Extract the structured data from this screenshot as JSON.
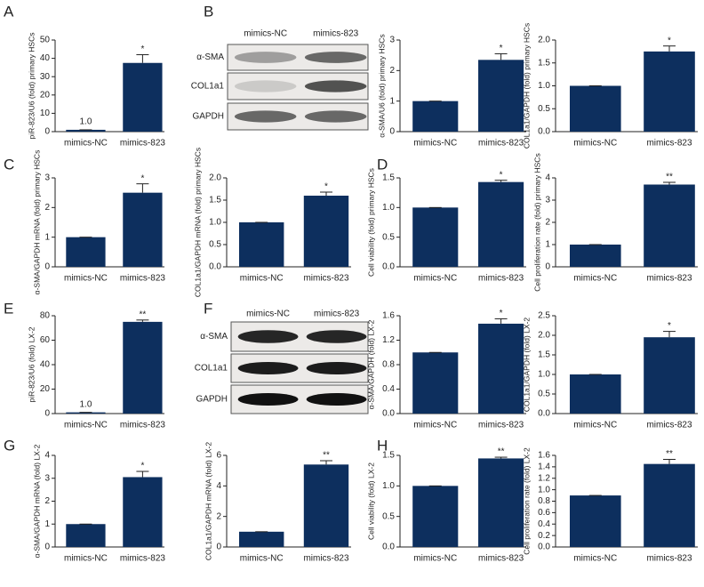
{
  "panels": [
    "A",
    "B",
    "C",
    "D",
    "E",
    "F",
    "G",
    "H"
  ],
  "blots": [
    {
      "columns": [
        "mimics-NC",
        "mimics-823"
      ],
      "rows": [
        "α-SMA",
        "COL1a1",
        "GAPDH"
      ]
    },
    {
      "columns": [
        "mimics-NC",
        "mimics-823"
      ],
      "rows": [
        "α-SMA",
        "COL1a1",
        "GAPDH"
      ]
    }
  ],
  "chart_data": [
    {
      "type": "bar",
      "ylabel": "piR-823/U6 (fold) primary HSCs",
      "categories": [
        "mimics-NC",
        "mimics-823"
      ],
      "values": [
        1,
        37.5
      ],
      "errors": [
        0,
        4.5
      ],
      "value_labels": [
        "1.0",
        null
      ],
      "star": "*",
      "color": "#0d2f5e",
      "ylim": [
        0,
        50
      ],
      "yticks": [
        0,
        10,
        20,
        30,
        40,
        50
      ]
    },
    {
      "type": "bar",
      "ylabel": "α-SMA/U6 (fold) primary HSCs",
      "categories": [
        "mimics-NC",
        "mimics-823"
      ],
      "values": [
        1,
        2.35
      ],
      "errors": [
        0,
        0.2
      ],
      "star": "*",
      "color": "#0d2f5e",
      "ylim": [
        0,
        3
      ],
      "yticks": [
        0,
        1,
        2,
        3
      ]
    },
    {
      "type": "bar",
      "ylabel": "COL1a1/GAPDH (fold) primary HSCs",
      "categories": [
        "mimics-NC",
        "mimics-823"
      ],
      "values": [
        1,
        1.75
      ],
      "errors": [
        0,
        0.12
      ],
      "star": "*",
      "color": "#0d2f5e",
      "ylim": [
        0,
        2
      ],
      "yticks": [
        {
          "value": 0,
          "label": "0.0"
        },
        0.5,
        {
          "value": 1,
          "label": "1.0"
        },
        1.5,
        {
          "value": 2,
          "label": "2.0"
        }
      ]
    },
    {
      "type": "bar",
      "ylabel": "α-SMA/GAPDH mRNA (fold) primary HSCs",
      "categories": [
        "mimics-NC",
        "mimics-823"
      ],
      "values": [
        1,
        2.5
      ],
      "errors": [
        0,
        0.3
      ],
      "star": "*",
      "color": "#0d2f5e",
      "ylim": [
        0,
        3
      ],
      "yticks": [
        0,
        1,
        2,
        3
      ]
    },
    {
      "type": "bar",
      "ylabel": "COL1a1/GAPDH mRNA (fold) primary HSCs",
      "categories": [
        "mimics-NC",
        "mimics-823"
      ],
      "values": [
        1,
        1.6
      ],
      "errors": [
        0,
        0.08
      ],
      "star": "*",
      "color": "#0d2f5e",
      "ylim": [
        0,
        2
      ],
      "yticks": [
        {
          "value": 0,
          "label": "0.0"
        },
        0.5,
        {
          "value": 1,
          "label": "1.0"
        },
        1.5,
        {
          "value": 2,
          "label": "2.0"
        }
      ]
    },
    {
      "type": "bar",
      "ylabel": "Cell viability (fold) primary HSCs",
      "categories": [
        "mimics-NC",
        "mimics-823"
      ],
      "values": [
        1,
        1.43
      ],
      "errors": [
        0,
        0.03
      ],
      "star": "*",
      "color": "#0d2f5e",
      "ylim": [
        0,
        1.5
      ],
      "yticks": [
        {
          "value": 0,
          "label": "0.0"
        },
        0.5,
        {
          "value": 1,
          "label": "1.0"
        },
        1.5
      ]
    },
    {
      "type": "bar",
      "ylabel": "Cell proliferation rate (fold) primary HSCs",
      "categories": [
        "mimics-NC",
        "mimics-823"
      ],
      "values": [
        1,
        3.7
      ],
      "errors": [
        0,
        0.1
      ],
      "star": "**",
      "color": "#0d2f5e",
      "ylim": [
        0,
        4
      ],
      "yticks": [
        0,
        1,
        2,
        3,
        4
      ]
    },
    {
      "type": "bar",
      "ylabel": "piR-823/U6 (fold) LX-2",
      "categories": [
        "mimics-NC",
        "mimics-823"
      ],
      "values": [
        1,
        75
      ],
      "errors": [
        0,
        1.5
      ],
      "value_labels": [
        "1.0",
        null
      ],
      "star": "**",
      "color": "#0d2f5e",
      "ylim": [
        0,
        80
      ],
      "yticks": [
        0,
        20,
        40,
        60,
        80
      ]
    },
    {
      "type": "bar",
      "ylabel": "α-SMA/GAPDH (fold) LX-2",
      "categories": [
        "mimics-NC",
        "mimics-823"
      ],
      "values": [
        1,
        1.47
      ],
      "errors": [
        0,
        0.08
      ],
      "star": "*",
      "color": "#0d2f5e",
      "ylim": [
        0,
        1.6
      ],
      "yticks": [
        {
          "value": 0,
          "label": "0.0"
        },
        0.4,
        0.8,
        1.2,
        1.6
      ]
    },
    {
      "type": "bar",
      "ylabel": "COL1a1/GAPDH (fold) LX-2",
      "categories": [
        "mimics-NC",
        "mimics-823"
      ],
      "values": [
        1,
        1.95
      ],
      "errors": [
        0,
        0.15
      ],
      "star": "*",
      "color": "#0d2f5e",
      "ylim": [
        0,
        2.5
      ],
      "yticks": [
        {
          "value": 0,
          "label": "0.0"
        },
        0.5,
        {
          "value": 1,
          "label": "1.0"
        },
        1.5,
        {
          "value": 2,
          "label": "2.0"
        },
        2.5
      ]
    },
    {
      "type": "bar",
      "ylabel": "α-SMA/GAPDH mRNA (fold) LX-2",
      "categories": [
        "mimics-NC",
        "mimics-823"
      ],
      "values": [
        1,
        3.05
      ],
      "errors": [
        0,
        0.25
      ],
      "star": "*",
      "color": "#0d2f5e",
      "ylim": [
        0,
        4
      ],
      "yticks": [
        0,
        1,
        2,
        3,
        4
      ]
    },
    {
      "type": "bar",
      "ylabel": "COL1a1/GAPDH mRNA (fold) LX-2",
      "categories": [
        "mimics-NC",
        "mimics-823"
      ],
      "values": [
        1,
        5.4
      ],
      "errors": [
        0,
        0.25
      ],
      "star": "**",
      "color": "#0d2f5e",
      "ylim": [
        0,
        6
      ],
      "yticks": [
        0,
        2,
        4,
        6
      ]
    },
    {
      "type": "bar",
      "ylabel": "Cell viability (fold) LX-2",
      "categories": [
        "mimics-NC",
        "mimics-823"
      ],
      "values": [
        1,
        1.45
      ],
      "errors": [
        0,
        0.02
      ],
      "star": "**",
      "color": "#0d2f5e",
      "ylim": [
        0,
        1.5
      ],
      "yticks": [
        {
          "value": 0,
          "label": "0.0"
        },
        0.5,
        {
          "value": 1,
          "label": "1.0"
        },
        1.5
      ]
    },
    {
      "type": "bar",
      "ylabel": "Cell proliferation rate (fold) LX-2",
      "categories": [
        "mimics-NC",
        "mimics-823"
      ],
      "values": [
        0.9,
        1.45
      ],
      "errors": [
        0,
        0.08
      ],
      "star": "**",
      "color": "#0d2f5e",
      "ylim": [
        0,
        1.6
      ],
      "yticks": [
        {
          "value": 0,
          "label": "0.0"
        },
        0.2,
        0.4,
        0.6,
        0.8,
        {
          "value": 1,
          "label": "1.0"
        },
        1.2,
        1.4,
        1.6
      ]
    }
  ]
}
